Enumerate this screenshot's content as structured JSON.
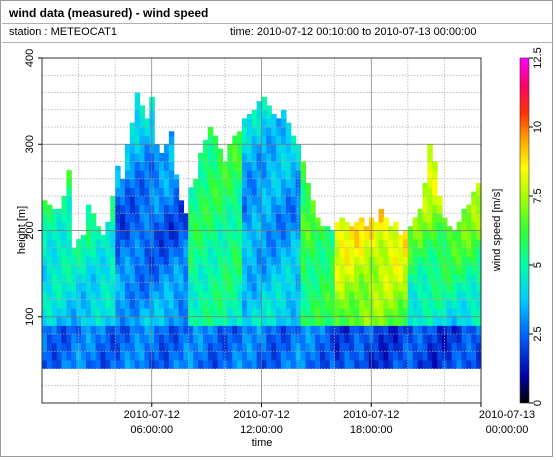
{
  "header": {
    "title": "wind data (measured) - wind speed",
    "station": "station : METEOCAT1",
    "time_range": "time: 2010-07-12 00:10:00 to 2010-07-13 00:00:00"
  },
  "chart_data": {
    "type": "heatmap",
    "title": "wind data (measured) - wind speed",
    "xlabel": "time",
    "ylabel": "height [m]",
    "ylim": [
      0,
      400
    ],
    "yticks": [
      "100",
      "200",
      "300",
      "400"
    ],
    "xticks": [
      {
        "l1": "2010-07-12",
        "l2": "06:00:00"
      },
      {
        "l1": "2010-07-12",
        "l2": "12:00:00"
      },
      {
        "l1": "2010-07-12",
        "l2": "18:00:00"
      },
      {
        "l1": "2010-07-13",
        "l2": "00:00:00"
      }
    ],
    "xlim_hours": [
      0,
      24
    ],
    "time_step_minutes": 10,
    "height_range_m": [
      40,
      370
    ],
    "grid": true,
    "colorbar": {
      "label": "wind speed [m/s]",
      "range": [
        0,
        12.5
      ],
      "ticks": [
        "0",
        "2.5",
        "5",
        "7.5",
        "10",
        "12.5"
      ]
    },
    "profile_top_m": [
      235,
      230,
      225,
      225,
      240,
      270,
      180,
      190,
      195,
      230,
      220,
      205,
      195,
      210,
      240,
      275,
      260,
      300,
      325,
      360,
      345,
      330,
      355,
      300,
      290,
      300,
      315,
      265,
      235,
      220,
      250,
      260,
      290,
      305,
      320,
      310,
      295,
      280,
      300,
      310,
      315,
      330,
      335,
      340,
      350,
      355,
      345,
      335,
      330,
      340,
      325,
      310,
      300,
      280,
      255,
      235,
      215,
      205,
      205,
      200,
      210,
      215,
      210,
      205,
      210,
      215,
      205,
      215,
      210,
      225,
      215,
      205,
      210,
      195,
      200,
      205,
      215,
      225,
      255,
      300,
      280,
      240,
      215,
      205,
      200,
      210,
      225,
      230,
      245,
      255
    ],
    "speed_by_region_m_s": {
      "low_level_jet_morning": {
        "hours": [
          4,
          8
        ],
        "heights_m": [
          50,
          250
        ],
        "value": 2.5
      },
      "late_morning_mixing": {
        "hours": [
          8,
          11
        ],
        "heights_m": [
          60,
          360
        ],
        "value": 5.5
      },
      "midday_core": {
        "hours": [
          11,
          14
        ],
        "heights_m": [
          80,
          350
        ],
        "value": 3.5
      },
      "afternoon": {
        "hours": [
          14,
          19
        ],
        "heights_m": [
          40,
          280
        ],
        "value": 6.0
      },
      "evening_upper": {
        "hours": [
          16,
          20
        ],
        "heights_m": [
          180,
          230
        ],
        "value": 9.0
      },
      "night_surface": {
        "hours": [
          19,
          24
        ],
        "heights_m": [
          40,
          110
        ],
        "value": 2.0
      }
    }
  }
}
